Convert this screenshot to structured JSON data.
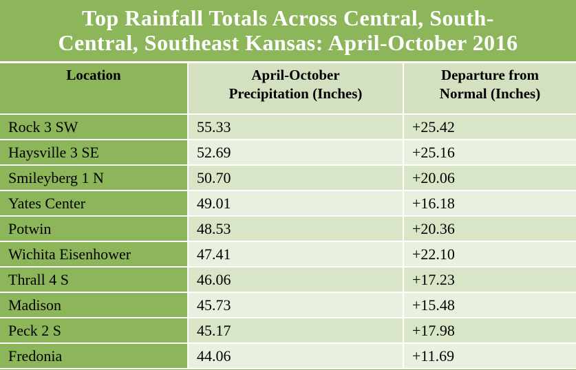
{
  "title": {
    "line1": "Top Rainfall Totals Across Central, South-",
    "line2": "Central, Southeast Kansas: April-October  2016"
  },
  "headers": {
    "location": "Location",
    "precip_line1": "April-October",
    "precip_line2": "Precipitation  (Inches)",
    "departure_line1": "Departure from",
    "departure_line2": "Normal (Inches)"
  },
  "rows": [
    {
      "location": "Rock 3 SW",
      "precip": "55.33",
      "departure": "+25.42"
    },
    {
      "location": "Haysville 3 SE",
      "precip": "52.69",
      "departure": "+25.16"
    },
    {
      "location": "Smileyberg  1 N",
      "precip": "50.70",
      "departure": "+20.06"
    },
    {
      "location": "Yates Center",
      "precip": "49.01",
      "departure": "+16.18"
    },
    {
      "location": "Potwin",
      "precip": "48.53",
      "departure": "+20.36"
    },
    {
      "location": "Wichita Eisenhower",
      "precip": "47.41",
      "departure": "+22.10"
    },
    {
      "location": "Thrall  4 S",
      "precip": "46.06",
      "departure": "+17.23"
    },
    {
      "location": "Madison",
      "precip": "45.73",
      "departure": "+15.48"
    },
    {
      "location": "Peck 2 S",
      "precip": "45.17",
      "departure": "+17.98"
    },
    {
      "location": "Fredonia",
      "precip": "44.06",
      "departure": "+11.69"
    }
  ]
}
